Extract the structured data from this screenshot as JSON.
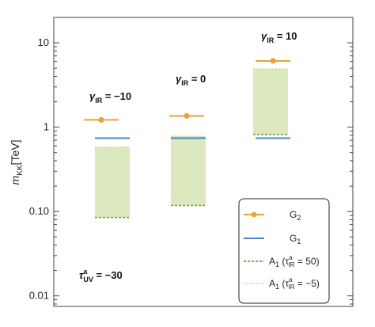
{
  "chart_data": {
    "type": "scatter",
    "ylabel": "m_KK[TeV]",
    "y_scale": "log",
    "ylim": [
      0.0075,
      20
    ],
    "x_categories": [
      "γ_IR = −10",
      "γ_IR = 0",
      "γ_IR = 10"
    ],
    "y_ticks": [
      {
        "value": 0.01,
        "label": "0.01"
      },
      {
        "value": 0.1,
        "label": "0.10"
      },
      {
        "value": 1,
        "label": "1"
      },
      {
        "value": 10,
        "label": "10"
      }
    ],
    "series": [
      {
        "name": "G2",
        "kind": "point-with-bar",
        "color": "#E8A33A",
        "values": [
          1.22,
          1.36,
          6.1
        ]
      },
      {
        "name": "G1",
        "kind": "bar",
        "color": "#4A86C8",
        "values": [
          0.74,
          0.74,
          0.74
        ]
      },
      {
        "name": "A1 (τ_IR^a = 50)",
        "kind": "band-bottom",
        "color": "#6FA32B",
        "values": [
          0.085,
          0.118,
          0.82
        ]
      },
      {
        "name": "A1 (τ_IR^a = −5)",
        "kind": "band-top",
        "color": "#C5D98E",
        "values": [
          0.58,
          0.78,
          4.9
        ]
      }
    ],
    "band_fill": "#DCE8BE",
    "annotations": [
      {
        "text_main": "γ",
        "text_sub": "IR",
        "text_rest": " = −10"
      },
      {
        "text_main": "γ",
        "text_sub": "IR",
        "text_rest": " = 0"
      },
      {
        "text_main": "γ",
        "text_sub": "IR",
        "text_rest": " = 10"
      },
      {
        "text_main": "τ",
        "text_sup": "a",
        "text_sub": "UV",
        "text_rest": " = −30"
      }
    ],
    "legend": {
      "position": "bottom-right",
      "entries": [
        {
          "base": "G",
          "sub": "2",
          "rest": ""
        },
        {
          "base": "G",
          "sub": "1",
          "rest": ""
        },
        {
          "base": "A",
          "sub": "1",
          "rest": " (τ",
          "sup2": "a",
          "sub2": "IR",
          "rest2": " = 50)"
        },
        {
          "base": "A",
          "sub": "1",
          "rest": " (τ",
          "sup2": "a",
          "sub2": "IR",
          "rest2": " = −5)"
        }
      ]
    },
    "ylabel_parts": {
      "main": "m",
      "sub": "KK",
      "rest": "[TeV]"
    }
  }
}
